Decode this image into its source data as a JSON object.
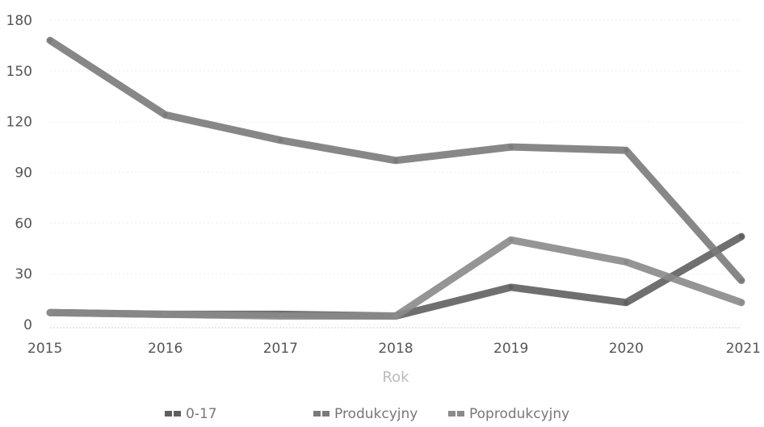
{
  "chart_data": {
    "type": "line",
    "title": "",
    "xlabel": "Rok",
    "ylabel": "",
    "x": [
      "2015",
      "2016",
      "2017",
      "2018",
      "2019",
      "2020",
      "2021"
    ],
    "ylim": [
      0,
      180
    ],
    "yticks": [
      0,
      30,
      60,
      90,
      120,
      150,
      180
    ],
    "grid": true,
    "legend": "bottom",
    "series": [
      {
        "name": "0-17",
        "color": "#5f5f5f",
        "values": [
          7,
          6,
          6,
          5,
          22,
          13,
          52
        ]
      },
      {
        "name": "Produkcyjny",
        "color": "#7a7a7a",
        "values": [
          168,
          124,
          109,
          97,
          105,
          103,
          26
        ]
      },
      {
        "name": "Poprodukcyjny",
        "color": "#8a8a8a",
        "values": [
          7,
          6,
          5,
          5,
          50,
          37,
          13
        ]
      }
    ]
  }
}
